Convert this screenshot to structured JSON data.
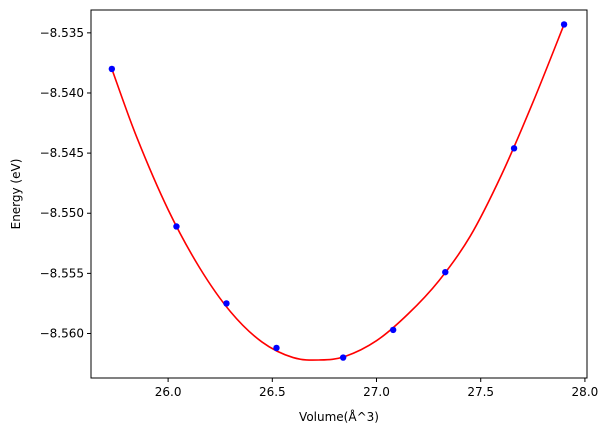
{
  "chart_data": {
    "type": "scatter",
    "xlabel": "Volume(Å^3)",
    "ylabel": "Energy (eV)",
    "xlim": [
      25.63,
      28.01
    ],
    "ylim": [
      -8.5637,
      -8.5331
    ],
    "x_ticks": [
      26.0,
      26.5,
      27.0,
      27.5,
      28.0
    ],
    "x_tick_labels": [
      "26.0",
      "26.5",
      "27.0",
      "27.5",
      "28.0"
    ],
    "y_ticks": [
      -8.535,
      -8.54,
      -8.545,
      -8.55,
      -8.555,
      -8.56
    ],
    "y_tick_labels": [
      "−8.535",
      "−8.540",
      "−8.545",
      "−8.550",
      "−8.555",
      "−8.560"
    ],
    "grid": false,
    "series": [
      {
        "kind": "points",
        "color": "#0000ff",
        "x": [
          25.73,
          26.04,
          26.28,
          26.52,
          26.84,
          27.08,
          27.33,
          27.66,
          27.9
        ],
        "y": [
          -8.538,
          -8.5511,
          -8.5575,
          -8.5612,
          -8.562,
          -8.5597,
          -8.5549,
          -8.5446,
          -8.5343
        ]
      },
      {
        "kind": "fit-curve",
        "color": "#ff0000",
        "x": [
          25.73,
          25.85,
          26.0,
          26.15,
          26.3,
          26.45,
          26.6,
          26.73,
          26.85,
          27.0,
          27.15,
          27.3,
          27.45,
          27.6,
          27.75,
          27.9
        ],
        "y": [
          -8.538,
          -8.5437,
          -8.5497,
          -8.5545,
          -8.5582,
          -8.5607,
          -8.562,
          -8.5622,
          -8.5619,
          -8.5606,
          -8.5584,
          -8.5556,
          -8.5519,
          -8.5468,
          -8.5408,
          -8.5343
        ]
      }
    ]
  }
}
